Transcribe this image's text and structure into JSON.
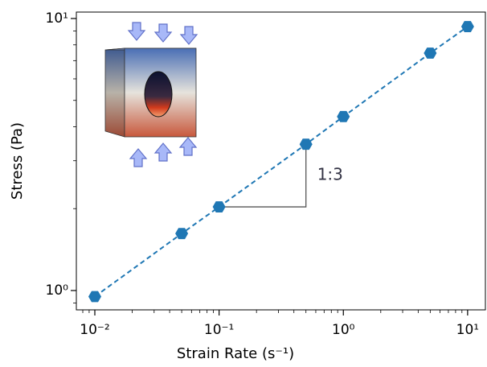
{
  "chart_data": {
    "type": "line",
    "x_label": "Strain Rate (s⁻¹)",
    "y_label": "Stress (Pa)",
    "x": [
      0.01,
      0.05,
      0.1,
      0.5,
      1,
      5,
      10
    ],
    "series": [
      {
        "color": "#1f77b4",
        "values": [
          0.95,
          1.62,
          2.03,
          3.45,
          4.36,
          7.46,
          9.34
        ]
      }
    ],
    "xlog": true,
    "ylog": true,
    "xlim": [
      0.0071,
      13.9
    ],
    "ylim": [
      0.849,
      10.56
    ],
    "xticks": [
      {
        "value": 0.01,
        "label": "10⁻²"
      },
      {
        "value": 0.1,
        "label": "10⁻¹"
      },
      {
        "value": 1,
        "label": "10⁰"
      },
      {
        "value": 10,
        "label": "10¹"
      }
    ],
    "yticks": [
      {
        "value": 1,
        "label": "10⁰"
      },
      {
        "value": 10,
        "label": "10¹"
      }
    ],
    "xminorticks": [
      0.008,
      0.009,
      0.02,
      0.03,
      0.04,
      0.05,
      0.06,
      0.07,
      0.08,
      0.09,
      0.2,
      0.3,
      0.4,
      0.5,
      0.6,
      0.7,
      0.8,
      0.9,
      2,
      3,
      4,
      5,
      6,
      7,
      8,
      9
    ],
    "yminorticks": [
      0.9,
      2,
      3,
      4,
      5,
      6,
      7,
      8,
      9
    ],
    "annotation": "1:3"
  }
}
